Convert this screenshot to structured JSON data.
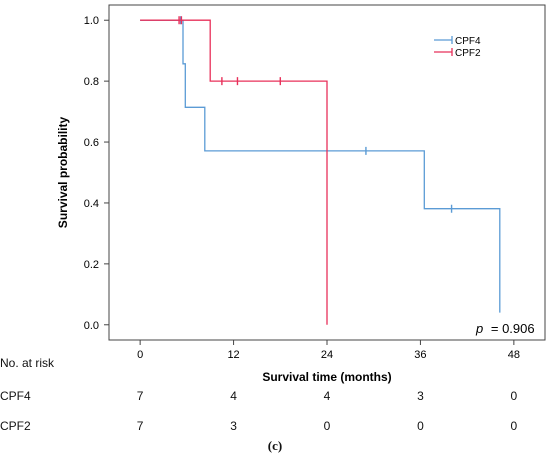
{
  "chart_data": {
    "type": "line",
    "subtype": "kaplan-meier",
    "xlabel": "Survival time (months)",
    "ylabel": "Survival probability",
    "xlim": [
      -4,
      52
    ],
    "ylim": [
      -0.05,
      1.05
    ],
    "xticks": [
      0,
      12,
      24,
      36,
      48
    ],
    "yticks": [
      0.0,
      0.2,
      0.4,
      0.6,
      0.8,
      1.0
    ],
    "ytick_labels": [
      "0.0",
      "0.2",
      "0.4",
      "0.6",
      "0.8",
      "1.0"
    ],
    "legend_position": "top-right",
    "annotation": {
      "text": "= 0.906",
      "prefix": "p"
    },
    "series": [
      {
        "name": "CPF4",
        "color": "#5b9bd5",
        "steps": [
          [
            0,
            1.0
          ],
          [
            5.5,
            1.0
          ],
          [
            5.5,
            0.857
          ],
          [
            5.8,
            0.857
          ],
          [
            5.8,
            0.714
          ],
          [
            8.3,
            0.714
          ],
          [
            8.3,
            0.571
          ],
          [
            36.5,
            0.571
          ],
          [
            36.5,
            0.381
          ],
          [
            46.2,
            0.381
          ],
          [
            46.2,
            0.04
          ]
        ],
        "censored": [
          [
            5.2,
            1.0
          ],
          [
            29.0,
            0.571
          ],
          [
            40.0,
            0.381
          ]
        ]
      },
      {
        "name": "CPF2",
        "color": "#e8305a",
        "steps": [
          [
            0,
            1.0
          ],
          [
            9.0,
            1.0
          ],
          [
            9.0,
            0.8
          ],
          [
            24.0,
            0.8
          ],
          [
            24.0,
            0.0
          ]
        ],
        "censored": [
          [
            5.0,
            1.0
          ],
          [
            5.3,
            1.0
          ],
          [
            10.5,
            0.8
          ],
          [
            12.5,
            0.8
          ],
          [
            18.0,
            0.8
          ]
        ]
      }
    ]
  },
  "risk_table": {
    "title": "No. at risk",
    "rows": [
      {
        "label": "CPF4",
        "values": [
          "7",
          "4",
          "4",
          "3",
          "0"
        ]
      },
      {
        "label": "CPF2",
        "values": [
          "7",
          "3",
          "0",
          "0",
          "0"
        ]
      }
    ]
  },
  "panel_label": "(c)"
}
